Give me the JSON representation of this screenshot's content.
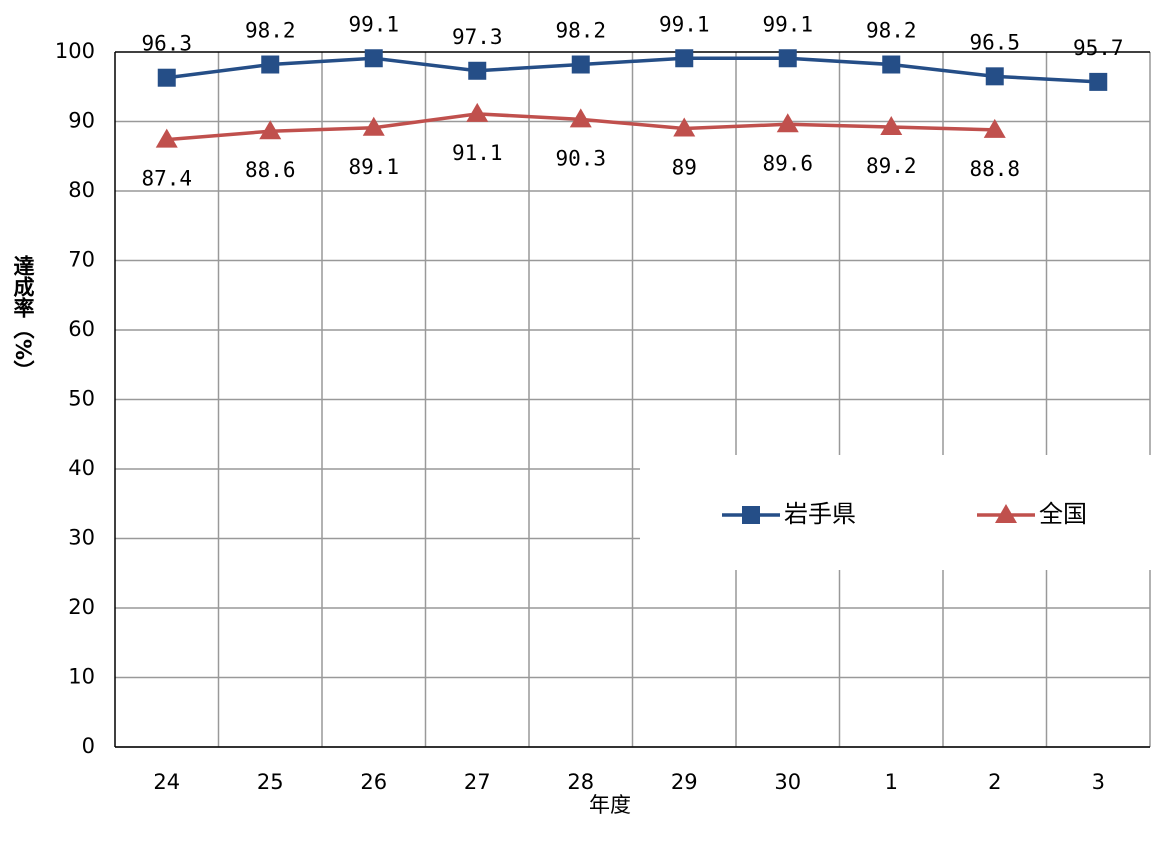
{
  "chart_data": {
    "type": "line",
    "x_label": "年度",
    "y_label": "達成率（%）",
    "categories": [
      "24",
      "25",
      "26",
      "27",
      "28",
      "29",
      "30",
      "1",
      "2",
      "3"
    ],
    "series": [
      {
        "name": "岩手県",
        "color": "#254e87",
        "marker": "square",
        "label_position": "above",
        "values": [
          96.3,
          98.2,
          99.1,
          97.3,
          98.2,
          99.1,
          99.1,
          98.2,
          96.5,
          95.7
        ]
      },
      {
        "name": "全国",
        "color": "#c0504d",
        "marker": "triangle",
        "label_position": "below",
        "values": [
          87.4,
          88.6,
          89.1,
          91.1,
          90.3,
          89,
          89.6,
          89.2,
          88.8,
          null
        ]
      }
    ],
    "ylim": [
      0,
      100
    ],
    "yticks": [
      0,
      10,
      20,
      30,
      40,
      50,
      60,
      70,
      80,
      90,
      100
    ],
    "grid": true
  }
}
